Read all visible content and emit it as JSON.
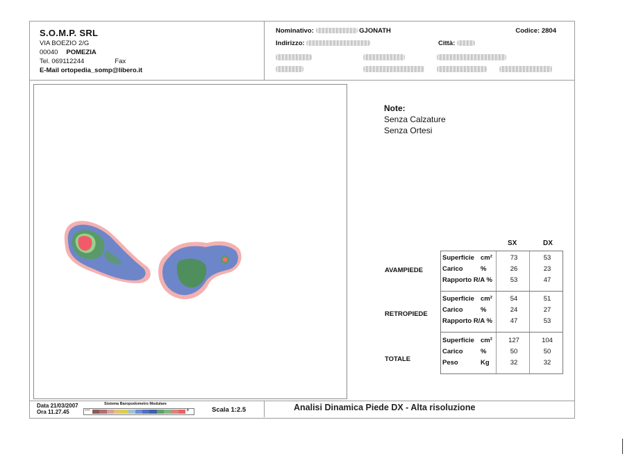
{
  "company": {
    "name": "S.O.M.P. SRL",
    "address": "VIA BOEZIO  2/G",
    "cap": "00040",
    "city": "POMEZIA",
    "tel": "Tel. 069112244",
    "fax": "Fax",
    "email": "E-Mail ortopedia_somp@libero.it"
  },
  "patient": {
    "nominativo_label": "Nominativo:",
    "nominativo_value": "GJONATH",
    "indirizzo_label": "Indirizzo:",
    "citta_label": "Città:",
    "codice": "Codice: 2804"
  },
  "notes": {
    "title": "Note:",
    "line1": "Senza Calzature",
    "line2": "Senza Ortesi"
  },
  "table": {
    "col_sx": "SX",
    "col_dx": "DX",
    "groups": [
      {
        "label": "AVAMPIEDE",
        "rows": [
          {
            "label": "Superficie",
            "unit": "cm²",
            "sx": "73",
            "dx": "53"
          },
          {
            "label": "Carico",
            "unit": "%",
            "sx": "26",
            "dx": "23"
          },
          {
            "label": "Rapporto R/A %",
            "unit": "",
            "sx": "53",
            "dx": "47"
          }
        ]
      },
      {
        "label": "RETROPIEDE",
        "rows": [
          {
            "label": "Superficie",
            "unit": "cm²",
            "sx": "54",
            "dx": "51"
          },
          {
            "label": "Carico",
            "unit": "%",
            "sx": "24",
            "dx": "27"
          },
          {
            "label": "Rapporto R/A %",
            "unit": "",
            "sx": "47",
            "dx": "53"
          }
        ]
      },
      {
        "label": "TOTALE",
        "rows": [
          {
            "label": "Superficie",
            "unit": "cm²",
            "sx": "127",
            "dx": "104"
          },
          {
            "label": "Carico",
            "unit": "%",
            "sx": "50",
            "dx": "50"
          },
          {
            "label": "Peso",
            "unit": "Kg",
            "sx": "32",
            "dx": "32"
          }
        ]
      }
    ]
  },
  "footer": {
    "data": "Data 21/03/2007",
    "ora": "Ora 11.27.45",
    "scale_title": "Sistema Baropodometro Modulare",
    "scale_min": "—",
    "scale_max": "+",
    "scala": "Scala 1:2.5",
    "title": "Analisi Dinamica Piede DX - Alta risoluzione"
  },
  "colors": {
    "pressure_scale": [
      "#8a5a5a",
      "#b07070",
      "#d9a0a0",
      "#e8c070",
      "#d8d050",
      "#a0c0e0",
      "#7090d0",
      "#5070c0",
      "#4060b0",
      "#60a070",
      "#80b880",
      "#e08080",
      "#f06060"
    ],
    "footprint_outer": "#f2a0a0",
    "footprint_blue": "#6d86c9",
    "footprint_green": "#4f8f5e",
    "footprint_hot": "#f25a6a"
  }
}
